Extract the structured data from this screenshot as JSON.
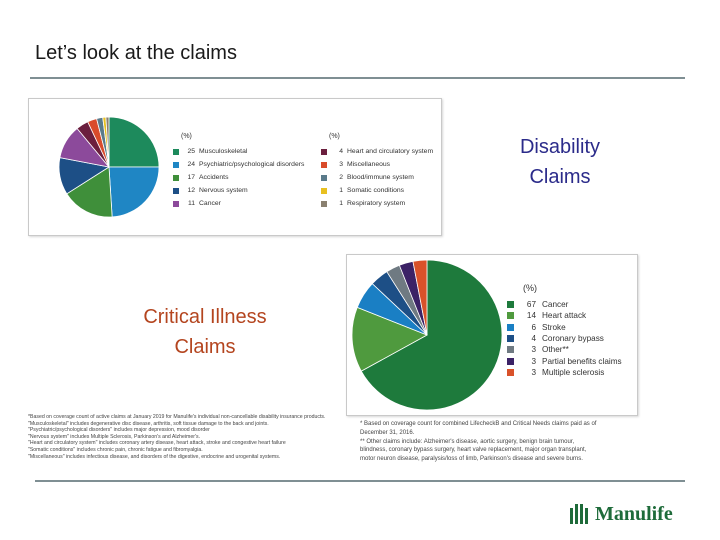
{
  "slide": {
    "title": "Let’s look at the claims",
    "disability_heading_line1": "Disability",
    "disability_heading_line2": "Claims",
    "critical_heading_line1": "Critical Illness",
    "critical_heading_line2": "Claims"
  },
  "chart_data": [
    {
      "type": "pie",
      "title": "",
      "legend_header_left": "(%)",
      "legend_header_right": "(%)",
      "legend_placement": "right",
      "slices": [
        {
          "label": "Musculoskeletal",
          "value": 25,
          "color": "#1d8a5c"
        },
        {
          "label": "Psychiatric/psychological disorders",
          "value": 24,
          "color": "#1f86c4"
        },
        {
          "label": "Accidents",
          "value": 17,
          "color": "#3f8f3a"
        },
        {
          "label": "Nervous system",
          "value": 12,
          "color": "#1d4f86"
        },
        {
          "label": "Cancer",
          "value": 11,
          "color": "#8c4a9b"
        },
        {
          "label": "Heart and circulatory system",
          "value": 4,
          "color": "#6b1f3e"
        },
        {
          "label": "Miscellaneous",
          "value": 3,
          "color": "#d94b2b"
        },
        {
          "label": "Blood/immune system",
          "value": 2,
          "color": "#5a7a8a"
        },
        {
          "label": "Somatic conditions",
          "value": 1,
          "color": "#e8c020"
        },
        {
          "label": "Respiratory system",
          "value": 1,
          "color": "#8a8070"
        }
      ]
    },
    {
      "type": "pie",
      "title": "",
      "legend_header": "(%)",
      "legend_placement": "right",
      "slices": [
        {
          "label": "Cancer",
          "value": 67,
          "color": "#1e7a3c"
        },
        {
          "label": "Heart attack",
          "value": 14,
          "color": "#4f9a3e"
        },
        {
          "label": "Stroke",
          "value": 6,
          "color": "#1a7fc4"
        },
        {
          "label": "Coronary bypass",
          "value": 4,
          "color": "#1d4f86"
        },
        {
          "label": "Other**",
          "value": 3,
          "color": "#6f7a82"
        },
        {
          "label": "Partial benefits claims",
          "value": 3,
          "color": "#3b2266"
        },
        {
          "label": "Multiple sclerosis",
          "value": 3,
          "color": "#d9522a"
        }
      ]
    }
  ],
  "footnotes_left": [
    "*Based on coverage count of active claims at January 2019 for Manulife's individual non-cancellable disability insurance products.",
    "\"Musculoskeletal\" includes degenerative disc disease, arthritis, soft tissue damage to the back and joints.",
    "\"Psychiatric/psychological disorders\" includes major depression, mood disorder",
    "\"Nervous system\" includes Multiple Sclerosis, Parkinson's and Alzheimer's.",
    "\"Heart and circulatory system\" includes coronary artery disease, heart attack, stroke and congestive heart failure",
    "\"Somatic conditions\" includes chronic pain, chronic fatigue and fibromyalgia.",
    "\"Miscellaneous\" includes infectious disease, and disorders of the digestive, endocrine and urogenital systems."
  ],
  "footnotes_right": [
    "* Based on coverage count for combined LifecheckB and Critical Needs claims paid as of",
    "December 31, 2016.",
    "** Other claims include: Alzheimer's disease, aortic surgery, benign brain tumour,",
    "blindness, coronary bypass surgery, heart valve replacement, major organ transplant,",
    "motor neuron disease, paralysis/loss of limb, Parkinson's disease and severe burns."
  ],
  "logo": {
    "text": "Manulife",
    "color": "#1e6b3a",
    "icon": "manulife-logo-mark"
  }
}
